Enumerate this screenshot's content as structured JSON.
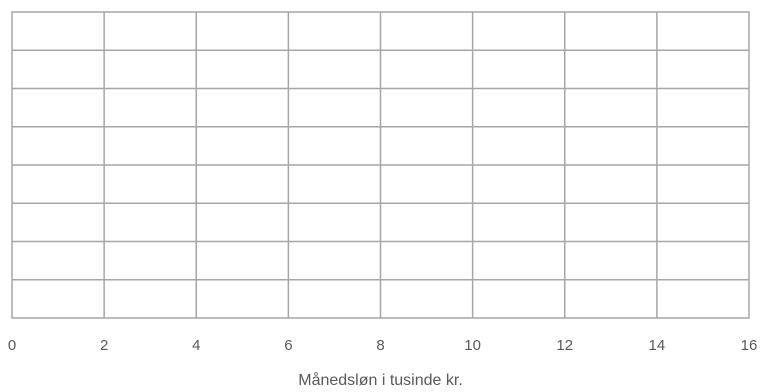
{
  "chart_data": {
    "type": "table",
    "title": "",
    "xlabel": "Månedsløn i tusinde kr.",
    "ylabel": "",
    "xlim": [
      0,
      16
    ],
    "x_ticks": [
      0,
      2,
      4,
      6,
      8,
      10,
      12,
      14,
      16
    ],
    "x_tick_labels": [
      "0",
      "2",
      "4",
      "6",
      "8",
      "10",
      "12",
      "14",
      "16"
    ],
    "grid": true,
    "grid_rows": 8,
    "grid_columns": 8,
    "series": []
  },
  "colors": {
    "grid": "#a6a6a6",
    "text": "#595959",
    "background": "#ffffff"
  }
}
